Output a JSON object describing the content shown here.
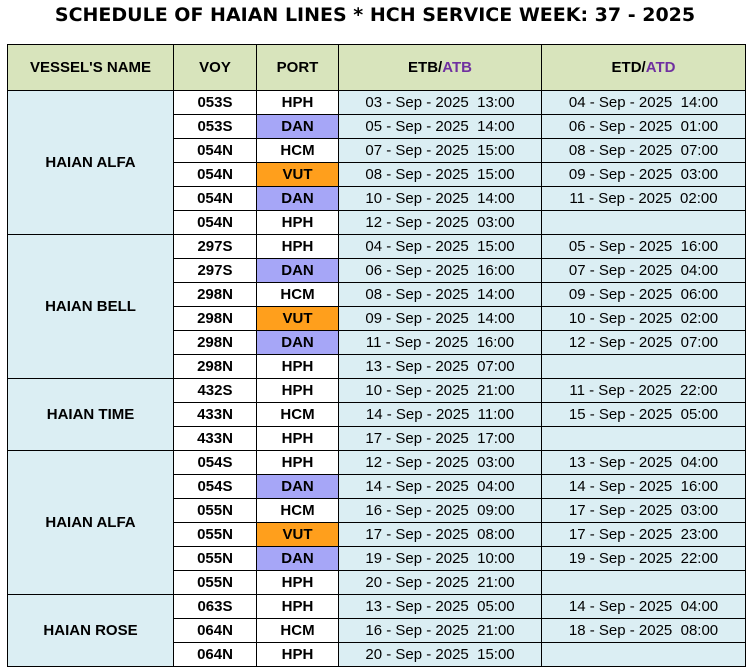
{
  "title": "SCHEDULE OF HAIAN LINES * HCH SERVICE WEEK: 37 - 2025",
  "headers": {
    "vessel": "VESSEL'S NAME",
    "voy": "VOY",
    "port": "PORT",
    "etb": "ETB/",
    "atb": "ATB",
    "etd": "ETD/",
    "atd": "ATD"
  },
  "colors": {
    "header_bg": "#d8e4bc",
    "row_bg": "#dbeef3",
    "dan": "#a6a6f7",
    "vut": "#ff9f1c",
    "actual_text": "#7030a0"
  },
  "groups": [
    {
      "vessel": "HAIAN ALFA",
      "rows": [
        {
          "voy": "053S",
          "port": "HPH",
          "etb": "03 - Sep - 2025  13:00",
          "etd": "04 - Sep - 2025  14:00"
        },
        {
          "voy": "053S",
          "port": "DAN",
          "etb": "05 - Sep - 2025  14:00",
          "etd": "06 - Sep - 2025  01:00"
        },
        {
          "voy": "054N",
          "port": "HCM",
          "etb": "07 - Sep - 2025  15:00",
          "etd": "08 - Sep - 2025  07:00"
        },
        {
          "voy": "054N",
          "port": "VUT",
          "etb": "08 - Sep - 2025  15:00",
          "etd": "09 - Sep - 2025  03:00"
        },
        {
          "voy": "054N",
          "port": "DAN",
          "etb": "10 - Sep - 2025  14:00",
          "etd": "11 - Sep - 2025  02:00"
        },
        {
          "voy": "054N",
          "port": "HPH",
          "etb": "12 - Sep - 2025  03:00",
          "etd": ""
        }
      ]
    },
    {
      "vessel": "HAIAN BELL",
      "rows": [
        {
          "voy": "297S",
          "port": "HPH",
          "etb": "04 - Sep - 2025  15:00",
          "etd": "05 - Sep - 2025  16:00"
        },
        {
          "voy": "297S",
          "port": "DAN",
          "etb": "06 - Sep - 2025  16:00",
          "etd": "07 - Sep - 2025  04:00"
        },
        {
          "voy": "298N",
          "port": "HCM",
          "etb": "08 - Sep - 2025  14:00",
          "etd": "09 - Sep - 2025  06:00"
        },
        {
          "voy": "298N",
          "port": "VUT",
          "etb": "09 - Sep - 2025  14:00",
          "etd": "10 - Sep - 2025  02:00"
        },
        {
          "voy": "298N",
          "port": "DAN",
          "etb": "11 - Sep - 2025  16:00",
          "etd": "12 - Sep - 2025  07:00"
        },
        {
          "voy": "298N",
          "port": "HPH",
          "etb": "13 - Sep - 2025  07:00",
          "etd": ""
        }
      ]
    },
    {
      "vessel": "HAIAN TIME",
      "rows": [
        {
          "voy": "432S",
          "port": "HPH",
          "etb": "10 - Sep - 2025  21:00",
          "etd": "11 - Sep - 2025  22:00"
        },
        {
          "voy": "433N",
          "port": "HCM",
          "etb": "14 - Sep - 2025  11:00",
          "etd": "15 - Sep - 2025  05:00"
        },
        {
          "voy": "433N",
          "port": "HPH",
          "etb": "17 - Sep - 2025  17:00",
          "etd": ""
        }
      ]
    },
    {
      "vessel": "HAIAN ALFA",
      "rows": [
        {
          "voy": "054S",
          "port": "HPH",
          "etb": "12 - Sep - 2025  03:00",
          "etd": "13 - Sep - 2025  04:00"
        },
        {
          "voy": "054S",
          "port": "DAN",
          "etb": "14 - Sep - 2025  04:00",
          "etd": "14 - Sep - 2025  16:00"
        },
        {
          "voy": "055N",
          "port": "HCM",
          "etb": "16 - Sep - 2025  09:00",
          "etd": "17 - Sep - 2025  03:00"
        },
        {
          "voy": "055N",
          "port": "VUT",
          "etb": "17 - Sep - 2025  08:00",
          "etd": "17 - Sep - 2025  23:00"
        },
        {
          "voy": "055N",
          "port": "DAN",
          "etb": "19 - Sep - 2025  10:00",
          "etd": "19 - Sep - 2025  22:00"
        },
        {
          "voy": "055N",
          "port": "HPH",
          "etb": "20 - Sep - 2025  21:00",
          "etd": ""
        }
      ]
    },
    {
      "vessel": "HAIAN ROSE",
      "rows": [
        {
          "voy": "063S",
          "port": "HPH",
          "etb": "13 - Sep - 2025  05:00",
          "etd": "14 - Sep - 2025  04:00"
        },
        {
          "voy": "064N",
          "port": "HCM",
          "etb": "16 - Sep - 2025  21:00",
          "etd": "18 - Sep - 2025  08:00"
        },
        {
          "voy": "064N",
          "port": "HPH",
          "etb": "20 - Sep - 2025  15:00",
          "etd": ""
        }
      ]
    }
  ]
}
